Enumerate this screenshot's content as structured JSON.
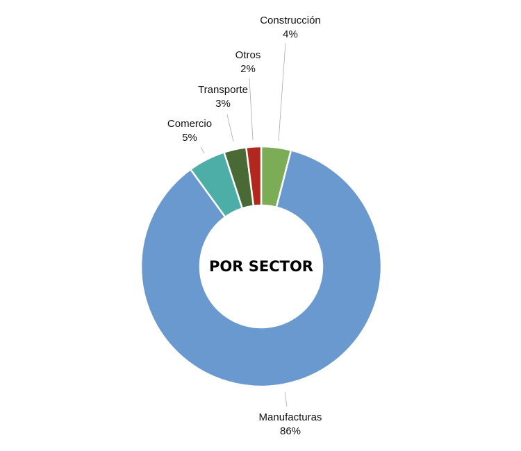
{
  "chart_data": {
    "type": "pie",
    "variant": "donut",
    "title": "POR SECTOR",
    "start": "top",
    "direction": "clockwise",
    "slices": [
      {
        "label": "Construcción",
        "value": 4,
        "value_label": "4%",
        "color": "#7cac55"
      },
      {
        "label": "Manufacturas",
        "value": 86,
        "value_label": "86%",
        "color": "#6a99d0"
      },
      {
        "label": "Comercio",
        "value": 5,
        "value_label": "5%",
        "color": "#4dada7"
      },
      {
        "label": "Transporte",
        "value": 3,
        "value_label": "3%",
        "color": "#4a6a35"
      },
      {
        "label": "Otros",
        "value": 2,
        "value_label": "2%",
        "color": "#b2271e"
      }
    ]
  }
}
